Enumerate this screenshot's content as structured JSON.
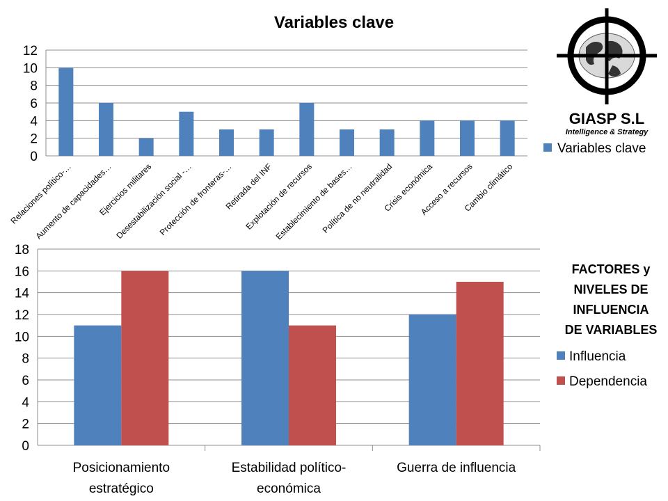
{
  "logo": {
    "name": "GIASP S.L",
    "tagline": "Intelligence & Strategy"
  },
  "colors": {
    "blue": "#4F81BD",
    "red": "#C0504D",
    "grid": "#8C8C8C",
    "axis": "#8C8C8C",
    "text": "#000000"
  },
  "chart_data": [
    {
      "type": "bar",
      "title": "Variables clave",
      "categories": [
        "Relaciones político-…",
        "Aumento de capacidades…",
        "Ejercicios militares",
        "Desestabilización social -…",
        "Protección de fronteras-…",
        "Retirada del INF",
        "Explotación de recursos",
        "Establecimiento de bases…",
        "Política de no neutralidad",
        "Crisis económica",
        "Acceso a recursos",
        "Cambio climático"
      ],
      "series": [
        {
          "name": "Variables clave",
          "values": [
            10,
            6,
            2,
            5,
            3,
            3,
            6,
            3,
            3,
            4,
            4,
            4
          ],
          "color": "#4F81BD"
        }
      ],
      "ylim": [
        0,
        12
      ],
      "yticks": [
        "0",
        "2",
        "4",
        "6",
        "8",
        "10",
        "12"
      ],
      "grid": true,
      "legend": "right"
    },
    {
      "type": "bar",
      "title": "",
      "categories": [
        [
          "Posicionamiento",
          "estratégico"
        ],
        [
          "Estabilidad político-",
          "económica"
        ],
        [
          "Guerra de influencia"
        ]
      ],
      "legend_title": [
        "FACTORES y",
        "NIVELES DE",
        "INFLUENCIA",
        "DE VARIABLES"
      ],
      "series": [
        {
          "name": "Influencia",
          "values": [
            11,
            16,
            12
          ],
          "color": "#4F81BD"
        },
        {
          "name": "Dependencia",
          "values": [
            16,
            11,
            15
          ],
          "color": "#C0504D"
        }
      ],
      "ylim": [
        0,
        18
      ],
      "yticks": [
        "0",
        "2",
        "4",
        "6",
        "8",
        "10",
        "12",
        "14",
        "16",
        "18"
      ],
      "grid": true,
      "legend": "right"
    }
  ]
}
